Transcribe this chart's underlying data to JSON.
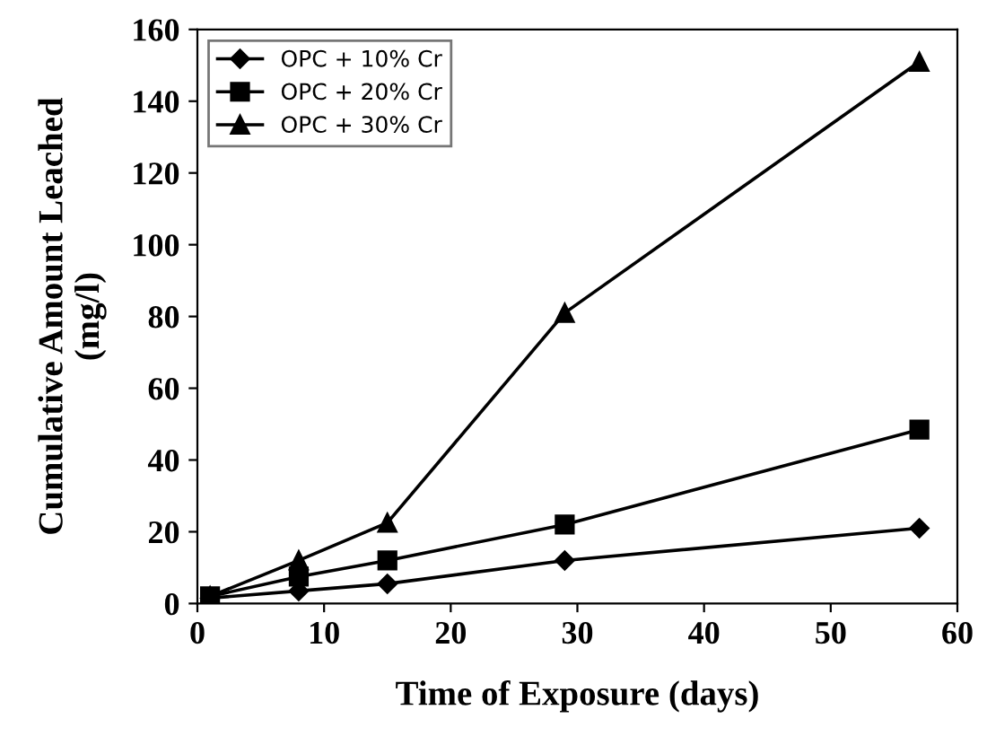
{
  "chart_data": {
    "type": "line",
    "xlabel": "Time of Exposure (days)",
    "ylabel": "Cumulative Amount Leached\n(mg/l)",
    "x": [
      1,
      8,
      15,
      29,
      57
    ],
    "series": [
      {
        "name": "OPC + 10% Cr",
        "color": "#000000",
        "marker": "diamond",
        "values": [
          1.5,
          3.5,
          5.5,
          12,
          21
        ]
      },
      {
        "name": "OPC + 20% Cr",
        "color": "#000000",
        "marker": "square",
        "values": [
          2,
          7.5,
          12,
          22,
          48.5
        ]
      },
      {
        "name": "OPC + 30% Cr",
        "color": "#000000",
        "marker": "triangle",
        "values": [
          2,
          12,
          22.5,
          81,
          151
        ]
      }
    ],
    "xlim": [
      0,
      60
    ],
    "xticks": [
      0,
      10,
      20,
      30,
      40,
      50,
      60
    ],
    "ylim": [
      0,
      160
    ],
    "yticks": [
      0,
      20,
      40,
      60,
      80,
      100,
      120,
      140,
      160
    ],
    "grid": false,
    "legend": "top left",
    "line_style": "solid"
  }
}
